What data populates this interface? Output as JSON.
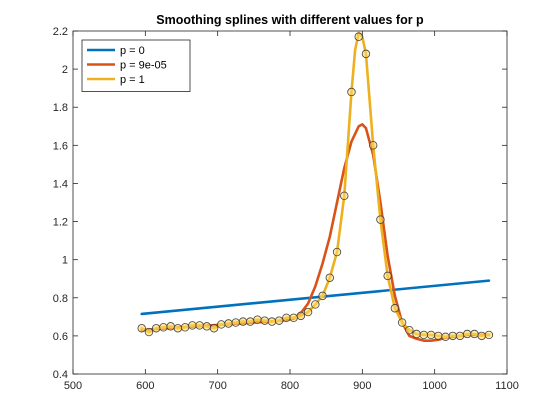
{
  "chart_data": {
    "type": "line",
    "title": "Smoothing splines with different values for p",
    "xlabel": "",
    "ylabel": "",
    "xlim": [
      500,
      1100
    ],
    "ylim": [
      0.4,
      2.2
    ],
    "xticks": [
      500,
      600,
      700,
      800,
      900,
      1000,
      1100
    ],
    "yticks": [
      0.4,
      0.6,
      0.8,
      1,
      1.2,
      1.4,
      1.6,
      1.8,
      2,
      2.2
    ],
    "grid": false,
    "legend_position": "top-left",
    "scatter": {
      "marker_color": "#FFD966",
      "edge_color": "#404040",
      "points": [
        [
          595,
          0.64
        ],
        [
          605,
          0.62
        ],
        [
          615,
          0.64
        ],
        [
          625,
          0.645
        ],
        [
          635,
          0.65
        ],
        [
          645,
          0.64
        ],
        [
          655,
          0.645
        ],
        [
          665,
          0.655
        ],
        [
          675,
          0.655
        ],
        [
          685,
          0.65
        ],
        [
          695,
          0.64
        ],
        [
          705,
          0.66
        ],
        [
          715,
          0.665
        ],
        [
          725,
          0.67
        ],
        [
          735,
          0.675
        ],
        [
          745,
          0.675
        ],
        [
          755,
          0.685
        ],
        [
          765,
          0.68
        ],
        [
          775,
          0.675
        ],
        [
          785,
          0.68
        ],
        [
          795,
          0.695
        ],
        [
          805,
          0.695
        ],
        [
          815,
          0.705
        ],
        [
          825,
          0.725
        ],
        [
          835,
          0.765
        ],
        [
          845,
          0.81
        ],
        [
          855,
          0.905
        ],
        [
          865,
          1.04
        ],
        [
          875,
          1.335
        ],
        [
          885,
          1.88
        ],
        [
          895,
          2.17
        ],
        [
          905,
          2.08
        ],
        [
          915,
          1.6
        ],
        [
          925,
          1.21
        ],
        [
          935,
          0.915
        ],
        [
          945,
          0.745
        ],
        [
          955,
          0.67
        ],
        [
          965,
          0.63
        ],
        [
          975,
          0.61
        ],
        [
          985,
          0.605
        ],
        [
          995,
          0.605
        ],
        [
          1005,
          0.6
        ],
        [
          1015,
          0.595
        ],
        [
          1025,
          0.6
        ],
        [
          1035,
          0.6
        ],
        [
          1045,
          0.61
        ],
        [
          1055,
          0.61
        ],
        [
          1065,
          0.6
        ],
        [
          1075,
          0.605
        ]
      ]
    },
    "series": [
      {
        "name": "p = 0",
        "color": "#0072BD",
        "x": [
          595,
          1075
        ],
        "y": [
          0.715,
          0.89
        ]
      },
      {
        "name": "p = 9e-05",
        "color": "#D95319",
        "x": [
          595,
          610,
          630,
          650,
          670,
          690,
          710,
          730,
          750,
          770,
          790,
          805,
          815,
          825,
          835,
          845,
          855,
          865,
          875,
          885,
          895,
          900,
          905,
          915,
          925,
          935,
          945,
          955,
          965,
          975,
          985,
          995,
          1005,
          1015,
          1025,
          1035,
          1045,
          1055,
          1065,
          1075
        ],
        "y": [
          0.63,
          0.635,
          0.64,
          0.645,
          0.65,
          0.655,
          0.66,
          0.665,
          0.67,
          0.675,
          0.68,
          0.69,
          0.72,
          0.77,
          0.86,
          0.98,
          1.12,
          1.3,
          1.48,
          1.62,
          1.7,
          1.71,
          1.69,
          1.55,
          1.3,
          1.02,
          0.81,
          0.67,
          0.6,
          0.585,
          0.575,
          0.575,
          0.58,
          0.59,
          0.595,
          0.6,
          0.605,
          0.605,
          0.605,
          0.605
        ]
      },
      {
        "name": "p = 1",
        "color": "#EDB120",
        "x": [
          595,
          605,
          615,
          625,
          635,
          645,
          655,
          665,
          675,
          685,
          695,
          705,
          715,
          725,
          735,
          745,
          755,
          765,
          775,
          785,
          795,
          805,
          815,
          825,
          835,
          845,
          855,
          865,
          875,
          885,
          890,
          895,
          900,
          905,
          915,
          925,
          935,
          945,
          955,
          965,
          975,
          985,
          995,
          1005,
          1015,
          1025,
          1035,
          1045,
          1055,
          1065,
          1075
        ],
        "y": [
          0.64,
          0.62,
          0.64,
          0.645,
          0.65,
          0.64,
          0.645,
          0.655,
          0.655,
          0.65,
          0.64,
          0.66,
          0.665,
          0.67,
          0.675,
          0.675,
          0.685,
          0.68,
          0.675,
          0.68,
          0.695,
          0.695,
          0.705,
          0.725,
          0.765,
          0.81,
          0.905,
          1.04,
          1.335,
          1.88,
          2.1,
          2.19,
          2.17,
          2.08,
          1.6,
          1.21,
          0.915,
          0.745,
          0.67,
          0.63,
          0.61,
          0.605,
          0.605,
          0.6,
          0.595,
          0.6,
          0.6,
          0.61,
          0.61,
          0.6,
          0.605
        ]
      }
    ]
  }
}
